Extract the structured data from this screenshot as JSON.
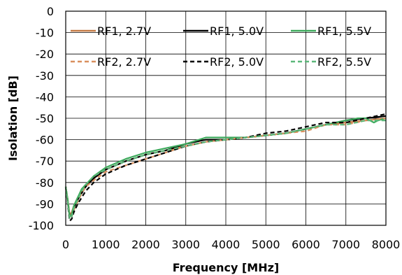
{
  "chart_data": {
    "type": "line",
    "xlabel": "Frequency [MHz]",
    "ylabel": "Isolation [dB]",
    "xlim": [
      0,
      8000
    ],
    "ylim": [
      -100,
      0
    ],
    "x_ticks": [
      "0",
      "1000",
      "2000",
      "3000",
      "4000",
      "5000",
      "6000",
      "7000",
      "8000"
    ],
    "y_ticks": [
      "0",
      "-10",
      "-20",
      "-30",
      "-40",
      "-50",
      "-60",
      "-70",
      "-80",
      "-90",
      "-100"
    ],
    "grid": true,
    "legend_position": "top, inside plot, two rows",
    "series": [
      {
        "name": "RF1, 2.7V",
        "color": "#C57A45",
        "dash": "solid",
        "points": [
          [
            0,
            -82
          ],
          [
            50,
            -88
          ],
          [
            100,
            -95
          ],
          [
            150,
            -94
          ],
          [
            200,
            -91
          ],
          [
            300,
            -87
          ],
          [
            400,
            -84
          ],
          [
            500,
            -81
          ],
          [
            700,
            -78
          ],
          [
            1000,
            -74
          ],
          [
            1500,
            -70
          ],
          [
            2000,
            -67
          ],
          [
            2500,
            -65
          ],
          [
            3000,
            -63
          ],
          [
            3500,
            -61
          ],
          [
            4000,
            -60
          ],
          [
            4500,
            -59
          ],
          [
            5000,
            -58
          ],
          [
            5500,
            -57
          ],
          [
            6000,
            -55
          ],
          [
            6500,
            -53
          ],
          [
            7000,
            -52
          ],
          [
            7500,
            -51
          ],
          [
            8000,
            -50
          ]
        ]
      },
      {
        "name": "RF1, 5.0V",
        "color": "#000000",
        "dash": "solid",
        "points": [
          [
            0,
            -82
          ],
          [
            50,
            -89
          ],
          [
            100,
            -96
          ],
          [
            150,
            -95
          ],
          [
            200,
            -92
          ],
          [
            300,
            -88
          ],
          [
            400,
            -85
          ],
          [
            500,
            -82
          ],
          [
            700,
            -78
          ],
          [
            1000,
            -74
          ],
          [
            1500,
            -70
          ],
          [
            2000,
            -67
          ],
          [
            2500,
            -65
          ],
          [
            3000,
            -62
          ],
          [
            3500,
            -60
          ],
          [
            4000,
            -60
          ],
          [
            4500,
            -59
          ],
          [
            5000,
            -58
          ],
          [
            5500,
            -57
          ],
          [
            6000,
            -55
          ],
          [
            6500,
            -53
          ],
          [
            7000,
            -51
          ],
          [
            7500,
            -50
          ],
          [
            8000,
            -49
          ]
        ]
      },
      {
        "name": "RF1, 5.5V",
        "color": "#3DAA5C",
        "dash": "solid",
        "points": [
          [
            0,
            -82
          ],
          [
            50,
            -88
          ],
          [
            100,
            -96
          ],
          [
            150,
            -95
          ],
          [
            200,
            -91
          ],
          [
            300,
            -87
          ],
          [
            400,
            -83
          ],
          [
            500,
            -81
          ],
          [
            700,
            -77
          ],
          [
            1000,
            -73
          ],
          [
            1500,
            -69
          ],
          [
            2000,
            -66
          ],
          [
            2500,
            -64
          ],
          [
            3000,
            -62
          ],
          [
            3500,
            -59
          ],
          [
            4000,
            -59
          ],
          [
            4500,
            -59
          ],
          [
            5000,
            -58
          ],
          [
            5500,
            -57
          ],
          [
            6000,
            -55
          ],
          [
            6500,
            -53
          ],
          [
            7000,
            -51
          ],
          [
            7300,
            -50
          ],
          [
            7500,
            -50
          ],
          [
            7700,
            -52
          ],
          [
            7800,
            -51
          ],
          [
            8000,
            -50
          ]
        ]
      },
      {
        "name": "RF2, 2.7V",
        "color": "#D9905E",
        "dash": "dashed",
        "points": [
          [
            0,
            -82
          ],
          [
            50,
            -89
          ],
          [
            100,
            -97
          ],
          [
            150,
            -96
          ],
          [
            200,
            -93
          ],
          [
            300,
            -89
          ],
          [
            400,
            -85
          ],
          [
            500,
            -82
          ],
          [
            700,
            -79
          ],
          [
            1000,
            -75
          ],
          [
            1500,
            -72
          ],
          [
            2000,
            -69
          ],
          [
            2500,
            -66
          ],
          [
            3000,
            -63
          ],
          [
            3500,
            -61
          ],
          [
            4000,
            -60
          ],
          [
            4500,
            -59
          ],
          [
            5000,
            -58
          ],
          [
            5500,
            -57
          ],
          [
            6000,
            -56
          ],
          [
            6500,
            -53
          ],
          [
            7000,
            -53
          ],
          [
            7500,
            -51
          ],
          [
            8000,
            -50
          ]
        ]
      },
      {
        "name": "RF2, 5.0V",
        "color": "#000000",
        "dash": "dashed",
        "points": [
          [
            0,
            -82
          ],
          [
            50,
            -90
          ],
          [
            100,
            -98
          ],
          [
            150,
            -97
          ],
          [
            200,
            -94
          ],
          [
            300,
            -90
          ],
          [
            400,
            -87
          ],
          [
            500,
            -84
          ],
          [
            700,
            -80
          ],
          [
            1000,
            -76
          ],
          [
            1500,
            -72
          ],
          [
            2000,
            -69
          ],
          [
            2500,
            -66
          ],
          [
            3000,
            -63
          ],
          [
            3500,
            -61
          ],
          [
            4000,
            -60
          ],
          [
            4500,
            -59
          ],
          [
            5000,
            -57
          ],
          [
            5500,
            -56
          ],
          [
            6000,
            -54
          ],
          [
            6500,
            -52
          ],
          [
            7000,
            -52
          ],
          [
            7500,
            -50
          ],
          [
            8000,
            -48
          ]
        ]
      },
      {
        "name": "RF2, 5.5V",
        "color": "#5CB87A",
        "dash": "dashed",
        "points": [
          [
            0,
            -82
          ],
          [
            50,
            -89
          ],
          [
            100,
            -97
          ],
          [
            150,
            -96
          ],
          [
            200,
            -92
          ],
          [
            300,
            -88
          ],
          [
            400,
            -84
          ],
          [
            500,
            -81
          ],
          [
            700,
            -77
          ],
          [
            1000,
            -74
          ],
          [
            1500,
            -70
          ],
          [
            2000,
            -67
          ],
          [
            2500,
            -65
          ],
          [
            3000,
            -63
          ],
          [
            3500,
            -61
          ],
          [
            4000,
            -60
          ],
          [
            4500,
            -59
          ],
          [
            5000,
            -58
          ],
          [
            5500,
            -57
          ],
          [
            6000,
            -55
          ],
          [
            6500,
            -53
          ],
          [
            7000,
            -53
          ],
          [
            7500,
            -51
          ],
          [
            8000,
            -51
          ]
        ]
      }
    ]
  }
}
